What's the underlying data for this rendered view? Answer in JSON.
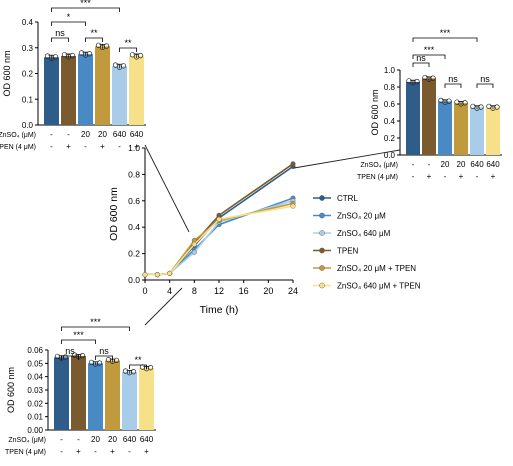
{
  "chart_data": [
    {
      "id": "line",
      "type": "line",
      "xlabel": "Time (h)",
      "ylabel": "OD 600 nm",
      "xticks": [
        0,
        4,
        8,
        12,
        16,
        20,
        24
      ],
      "yticks": [
        0.0,
        0.2,
        0.4,
        0.6,
        0.8,
        1.0
      ],
      "xlim": [
        0,
        24
      ],
      "ylim": [
        0,
        1.0
      ],
      "x": [
        0,
        2,
        4,
        8,
        12,
        24
      ],
      "legend_position": "right",
      "series": [
        {
          "name": "CTRL",
          "color": "#2f5d8a",
          "values": [
            0.04,
            0.04,
            0.05,
            0.26,
            0.47,
            0.86
          ]
        },
        {
          "name": "ZnSO₄ 20 μM",
          "color": "#4a8ac4",
          "values": [
            0.04,
            0.04,
            0.05,
            0.23,
            0.42,
            0.62
          ]
        },
        {
          "name": "ZnSO₄ 640 μM",
          "color": "#a9cde8",
          "values": [
            0.04,
            0.04,
            0.05,
            0.21,
            0.44,
            0.6
          ]
        },
        {
          "name": "TPEN",
          "color": "#7a5a2e",
          "values": [
            0.04,
            0.04,
            0.05,
            0.28,
            0.49,
            0.88
          ]
        },
        {
          "name": "ZnSO₄ 20 μM + TPEN",
          "color": "#c19a3d",
          "values": [
            0.04,
            0.04,
            0.05,
            0.3,
            0.45,
            0.58
          ]
        },
        {
          "name": "ZnSO₄ 640 μM + TPEN",
          "color": "#f7e08a",
          "values": [
            0.04,
            0.04,
            0.05,
            0.27,
            0.46,
            0.56
          ]
        }
      ]
    },
    {
      "id": "bar_8h",
      "type": "bar",
      "ylabel": "OD 600 nm",
      "yticks": [
        0.0,
        0.1,
        0.2,
        0.3,
        0.4
      ],
      "ylim": [
        0,
        0.4
      ],
      "values": [
        0.263,
        0.268,
        0.275,
        0.305,
        0.228,
        0.268
      ],
      "colors": [
        "#2f5d8a",
        "#7a5a2e",
        "#4a8ac4",
        "#c19a3d",
        "#a9cde8",
        "#f7e08a"
      ],
      "brackets": [
        {
          "from": 0,
          "to": 1,
          "label": "ns"
        },
        {
          "from": 0,
          "to": 2,
          "label": "*"
        },
        {
          "from": 2,
          "to": 3,
          "label": "**"
        },
        {
          "from": 0,
          "to": 4,
          "label": "***"
        },
        {
          "from": 4,
          "to": 5,
          "label": "**"
        }
      ]
    },
    {
      "id": "bar_24h",
      "type": "bar",
      "ylabel": "OD 600 nm",
      "yticks": [
        0.0,
        0.2,
        0.4,
        0.6,
        0.8,
        1.0
      ],
      "ylim": [
        0,
        1.0
      ],
      "values": [
        0.86,
        0.9,
        0.63,
        0.61,
        0.56,
        0.56
      ],
      "colors": [
        "#2f5d8a",
        "#7a5a2e",
        "#4a8ac4",
        "#c19a3d",
        "#a9cde8",
        "#f7e08a"
      ],
      "brackets": [
        {
          "from": 0,
          "to": 1,
          "label": "ns"
        },
        {
          "from": 0,
          "to": 2,
          "label": "***"
        },
        {
          "from": 2,
          "to": 3,
          "label": "ns"
        },
        {
          "from": 0,
          "to": 4,
          "label": "***"
        },
        {
          "from": 4,
          "to": 5,
          "label": "ns"
        }
      ]
    },
    {
      "id": "bar_2h",
      "type": "bar",
      "ylabel": "OD 600 nm",
      "yticks": [
        0.0,
        0.01,
        0.02,
        0.03,
        0.04,
        0.05,
        0.06
      ],
      "ylim": [
        0,
        0.06
      ],
      "values": [
        0.0545,
        0.0555,
        0.05,
        0.052,
        0.0435,
        0.0465
      ],
      "colors": [
        "#2f5d8a",
        "#7a5a2e",
        "#4a8ac4",
        "#c19a3d",
        "#a9cde8",
        "#f7e08a"
      ],
      "brackets": [
        {
          "from": 0,
          "to": 1,
          "label": "ns"
        },
        {
          "from": 0,
          "to": 2,
          "label": "***"
        },
        {
          "from": 2,
          "to": 3,
          "label": "ns"
        },
        {
          "from": 0,
          "to": 4,
          "label": "***"
        },
        {
          "from": 4,
          "to": 5,
          "label": "**"
        }
      ]
    }
  ],
  "condition_rows": {
    "znso4_label": "ZnSO₄ (μM)",
    "tpen_label": "TPEN (4 μM)",
    "znso4": [
      "-",
      "-",
      "20",
      "20",
      "640",
      "640"
    ],
    "tpen": [
      "-",
      "+",
      "-",
      "+",
      "-",
      "+"
    ]
  }
}
